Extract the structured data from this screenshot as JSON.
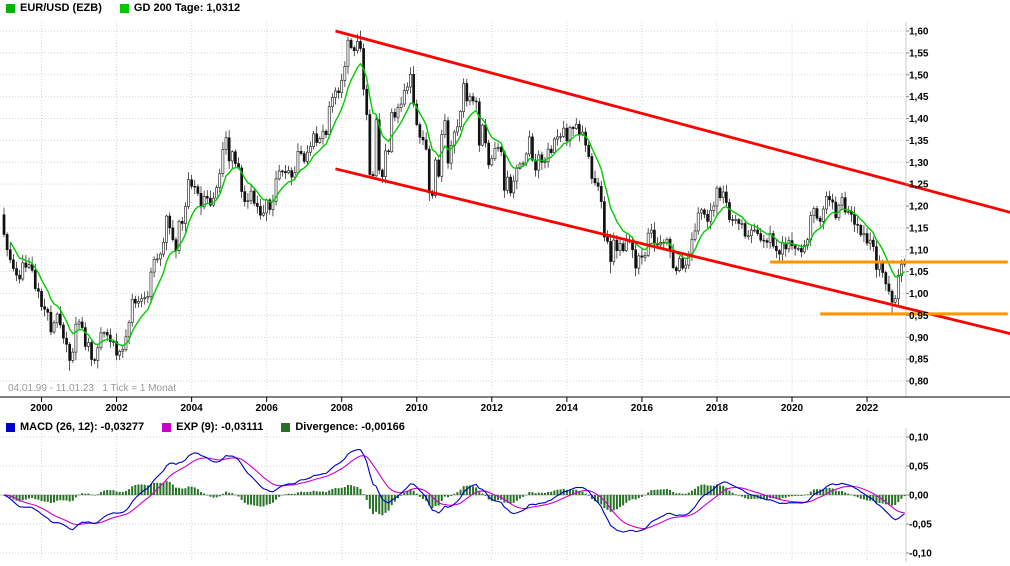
{
  "legend": {
    "series": "EUR/USD (EZB)",
    "ma": "GD 200 Tage: 1,0312"
  },
  "footer_info": "04.01.99 - 11.01.23   1 Tick = 1 Monat",
  "macd_legend": {
    "macd": "MACD (26, 12): -0,03277",
    "exp": "EXP (9): -0,03111",
    "divergence": "Divergence: -0,00166"
  },
  "colors": {
    "series_swatch": "#00b400",
    "ma_swatch": "#00c800",
    "ma_line": "#00cc00",
    "candle": "#111111",
    "trendline": "#ff0000",
    "support": "#ff9600",
    "macd_line": "#0000cc",
    "signal_line": "#cc00cc",
    "histogram": "#267326",
    "grid": "#d4d4d4",
    "axis_text": "#000000",
    "info_text": "#9a9a9a"
  },
  "chart_data": {
    "type": "candlestick",
    "title": "EUR/USD (EZB)",
    "period": "04.01.99 - 11.01.23",
    "interval": "1 Tick = 1 Monat",
    "x_start": "1999-01",
    "x_end": "2023-01",
    "x_tick_years": [
      "2000",
      "2002",
      "2004",
      "2006",
      "2008",
      "2010",
      "2012",
      "2014",
      "2016",
      "2018",
      "2020",
      "2022"
    ],
    "y_axis": {
      "min": 0.8,
      "max": 1.6,
      "step": 0.05,
      "tick_labels": [
        "1,60",
        "1,55",
        "1,50",
        "1,45",
        "1,40",
        "1,35",
        "1,30",
        "1,25",
        "1,20",
        "1,15",
        "1,10",
        "1,05",
        "1,00",
        "0,95",
        "0,90",
        "0,85",
        "0,80"
      ]
    },
    "first_open": 1.18,
    "monthly_closes": [
      1.135,
      1.1,
      1.077,
      1.057,
      1.042,
      1.033,
      1.07,
      1.06,
      1.066,
      1.053,
      1.011,
      1.005,
      0.97,
      0.964,
      0.957,
      0.912,
      0.933,
      0.953,
      0.928,
      0.898,
      0.884,
      0.847,
      0.866,
      0.93,
      0.935,
      0.922,
      0.879,
      0.888,
      0.849,
      0.847,
      0.876,
      0.91,
      0.911,
      0.905,
      0.89,
      0.89,
      0.859,
      0.868,
      0.872,
      0.901,
      0.934,
      0.987,
      0.978,
      0.982,
      0.988,
      0.99,
      0.993,
      1.049,
      1.078,
      1.079,
      1.09,
      1.117,
      1.177,
      1.15,
      1.123,
      1.098,
      1.165,
      1.16,
      1.199,
      1.26,
      1.245,
      1.244,
      1.229,
      1.198,
      1.222,
      1.218,
      1.202,
      1.218,
      1.242,
      1.274,
      1.329,
      1.356,
      1.303,
      1.324,
      1.297,
      1.287,
      1.233,
      1.21,
      1.212,
      1.234,
      1.206,
      1.199,
      1.179,
      1.184,
      1.214,
      1.192,
      1.211,
      1.262,
      1.28,
      1.279,
      1.276,
      1.281,
      1.266,
      1.276,
      1.325,
      1.32,
      1.302,
      1.323,
      1.336,
      1.365,
      1.345,
      1.354,
      1.371,
      1.363,
      1.427,
      1.448,
      1.463,
      1.459,
      1.487,
      1.519,
      1.579,
      1.562,
      1.555,
      1.576,
      1.56,
      1.467,
      1.409,
      1.272,
      1.269,
      1.397,
      1.282,
      1.267,
      1.326,
      1.324,
      1.414,
      1.403,
      1.425,
      1.433,
      1.464,
      1.472,
      1.501,
      1.433,
      1.386,
      1.357,
      1.351,
      1.33,
      1.23,
      1.224,
      1.305,
      1.268,
      1.363,
      1.395,
      1.298,
      1.338,
      1.369,
      1.381,
      1.416,
      1.48,
      1.44,
      1.45,
      1.44,
      1.438,
      1.339,
      1.385,
      1.344,
      1.294,
      1.308,
      1.332,
      1.334,
      1.324,
      1.236,
      1.266,
      1.23,
      1.257,
      1.286,
      1.296,
      1.298,
      1.319,
      1.358,
      1.305,
      1.282,
      1.317,
      1.3,
      1.301,
      1.33,
      1.322,
      1.353,
      1.358,
      1.359,
      1.378,
      1.349,
      1.38,
      1.377,
      1.387,
      1.363,
      1.369,
      1.339,
      1.313,
      1.263,
      1.253,
      1.245,
      1.21,
      1.129,
      1.119,
      1.073,
      1.122,
      1.098,
      1.114,
      1.098,
      1.121,
      1.118,
      1.1,
      1.058,
      1.086,
      1.083,
      1.087,
      1.138,
      1.145,
      1.113,
      1.111,
      1.117,
      1.116,
      1.124,
      1.098,
      1.059,
      1.052,
      1.08,
      1.058,
      1.065,
      1.09,
      1.124,
      1.143,
      1.184,
      1.191,
      1.181,
      1.165,
      1.19,
      1.2,
      1.241,
      1.219,
      1.232,
      1.208,
      1.169,
      1.168,
      1.169,
      1.16,
      1.16,
      1.131,
      1.132,
      1.145,
      1.145,
      1.137,
      1.122,
      1.121,
      1.117,
      1.137,
      1.108,
      1.098,
      1.09,
      1.115,
      1.102,
      1.121,
      1.109,
      1.103,
      1.103,
      1.095,
      1.11,
      1.123,
      1.178,
      1.194,
      1.172,
      1.165,
      1.193,
      1.222,
      1.214,
      1.209,
      1.173,
      1.202,
      1.219,
      1.186,
      1.187,
      1.181,
      1.158,
      1.156,
      1.134,
      1.137,
      1.115,
      1.122,
      1.107,
      1.055,
      1.073,
      1.048,
      1.022,
      1.005,
      0.98,
      0.988,
      1.041,
      1.067,
      1.073
    ],
    "extremes": {
      "21": {
        "low": 0.823
      },
      "114": {
        "high": 1.601
      },
      "194": {
        "low": 1.046
      },
      "284": {
        "low": 0.953
      }
    },
    "ma": {
      "name": "GD 200 Tage",
      "final_value": 1.0312,
      "smoothing_months": 9
    },
    "trendlines": [
      {
        "name": "upper-channel-trendline",
        "color": "#ff0000",
        "from_month": 106,
        "from_value": 1.6,
        "to_month": 322,
        "to_value": 1.185
      },
      {
        "name": "lower-channel-trendline",
        "color": "#ff0000",
        "from_month": 106,
        "from_value": 1.285,
        "to_month": 322,
        "to_value": 0.908
      }
    ],
    "support_lines": [
      {
        "name": "support-line-upper",
        "color": "#ff9600",
        "value": 1.072,
        "from_month": 245,
        "to_month": 321
      },
      {
        "name": "support-line-lower",
        "color": "#ff9600",
        "value": 0.9535,
        "from_month": 261,
        "to_month": 321
      }
    ],
    "macd": {
      "type": "macd",
      "fast": 12,
      "slow": 26,
      "signal": 9,
      "macd_final": -0.03277,
      "signal_final": -0.03111,
      "divergence_final": -0.00166,
      "y_axis": {
        "min": -0.1,
        "max": 0.1,
        "tick_values": [
          0.1,
          0.05,
          0.0,
          -0.05,
          -0.1
        ],
        "tick_labels": [
          "0,10",
          "0,05",
          "0,00",
          "-0,05",
          "-0,10"
        ]
      }
    }
  }
}
